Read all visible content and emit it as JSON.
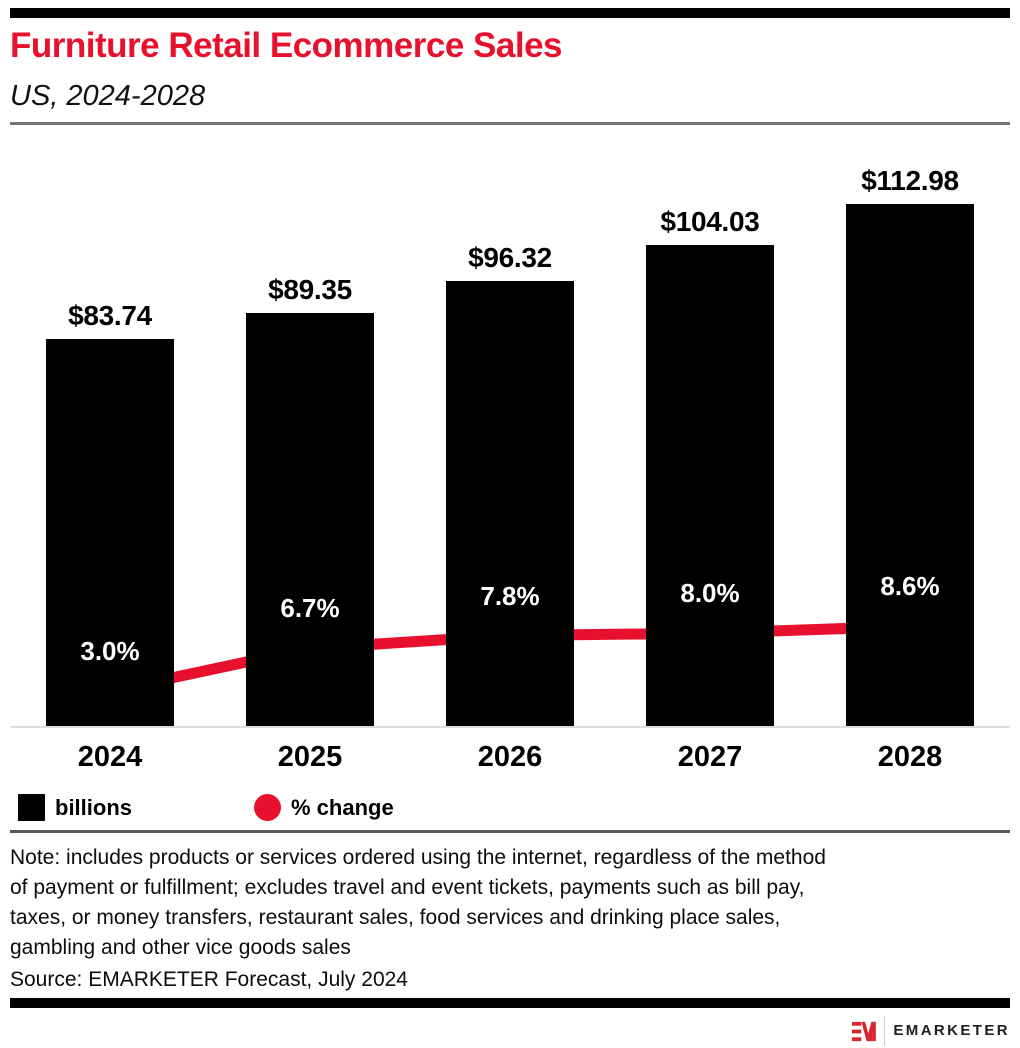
{
  "header": {
    "title": "Furniture Retail Ecommerce Sales",
    "subtitle": "US, 2024-2028"
  },
  "chart_data": {
    "type": "bar",
    "categories": [
      "2024",
      "2025",
      "2026",
      "2027",
      "2028"
    ],
    "series": [
      {
        "name": "billions",
        "type": "bar",
        "values": [
          83.74,
          89.35,
          96.32,
          104.03,
          112.98
        ],
        "labels": [
          "$83.74",
          "$89.35",
          "$96.32",
          "$104.03",
          "$112.98"
        ],
        "color": "#000000"
      },
      {
        "name": "% change",
        "type": "line",
        "values": [
          3.0,
          6.7,
          7.8,
          8.0,
          8.6
        ],
        "labels": [
          "3.0%",
          "6.7%",
          "7.8%",
          "8.0%",
          "8.6%"
        ],
        "color": "#e8112d"
      }
    ],
    "title": "Furniture Retail Ecommerce Sales",
    "subtitle": "US, 2024-2028",
    "xlabel": "",
    "ylabel": "",
    "grid": false,
    "legend_position": "bottom-left",
    "legend": [
      {
        "label": "billions",
        "swatch": "square",
        "color": "#000000"
      },
      {
        "label": "% change",
        "swatch": "circle",
        "color": "#e8112d"
      }
    ]
  },
  "note": {
    "lines": [
      "Note: includes products or services ordered using the internet, regardless of the method",
      "of payment or fulfillment; excludes travel and event tickets, payments such as bill pay,",
      "taxes, or money transfers, restaurant sales, food services and drinking place sales,",
      "gambling and other vice goods sales"
    ],
    "source": "Source: EMARKETER Forecast, July 2024"
  },
  "footer": {
    "brand": "EMARKETER",
    "logo_mark": "EM"
  },
  "colors": {
    "accent_red": "#e8112d",
    "bar_black": "#000000",
    "title_red": "#e8112d",
    "axis_gray": "#d9dde3",
    "rule_gray": "#757575",
    "mid_rule_gray": "#595959",
    "logo_red": "#d7282f",
    "logo_text": "#1d1d1d"
  }
}
